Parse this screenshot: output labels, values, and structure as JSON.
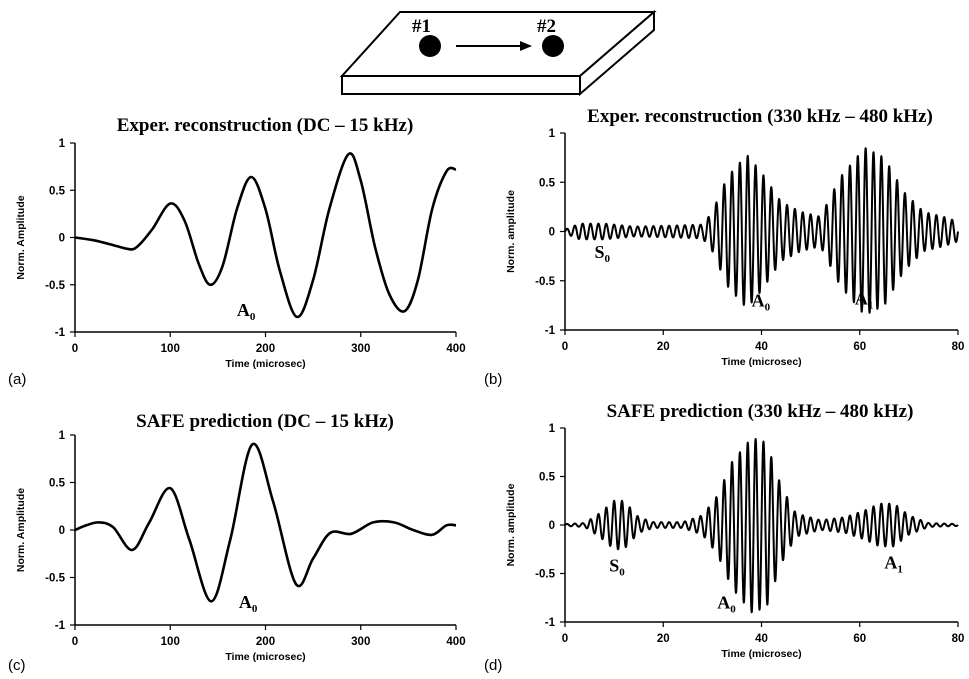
{
  "schematic": {
    "sensor_1_label": "#1",
    "sensor_2_label": "#2"
  },
  "chart_data": [
    {
      "id": "a",
      "panel_label": "(a)",
      "type": "line",
      "title": "Exper. reconstruction (DC – 15 kHz)",
      "xlabel": "Time (microsec)",
      "ylabel": "Norm. Amplitude",
      "xlim": [
        0,
        400
      ],
      "ylim": [
        -1,
        1
      ],
      "xticks": [
        0,
        100,
        200,
        300,
        400
      ],
      "yticks": [
        1,
        0.5,
        0,
        -0.5,
        -1
      ],
      "ytick_labels": [
        "1",
        "0.5",
        "0",
        "-0.5",
        "-1"
      ],
      "annotations": [
        {
          "text": "A",
          "sub": "0",
          "x": 170,
          "y": -0.83
        }
      ],
      "series": [
        {
          "x": [
            0,
            20,
            40,
            55,
            62,
            70,
            82,
            100,
            115,
            130,
            142,
            155,
            170,
            185,
            200,
            215,
            233,
            250,
            267,
            287,
            300,
            315,
            330,
            346,
            360,
            375,
            390,
            400
          ],
          "y": [
            0,
            -0.03,
            -0.08,
            -0.12,
            -0.12,
            -0.05,
            0.1,
            0.36,
            0.18,
            -0.28,
            -0.5,
            -0.3,
            0.3,
            0.64,
            0.3,
            -0.35,
            -0.84,
            -0.45,
            0.3,
            0.88,
            0.6,
            -0.1,
            -0.6,
            -0.78,
            -0.45,
            0.3,
            0.7,
            0.72
          ]
        }
      ]
    },
    {
      "id": "b",
      "panel_label": "(b)",
      "type": "line",
      "title": "Exper. reconstruction (330 kHz – 480 kHz)",
      "xlabel": "Time (microsec)",
      "ylabel": "Norm. amplitude",
      "xlim": [
        0,
        80
      ],
      "ylim": [
        -1,
        1
      ],
      "xticks": [
        0,
        20,
        40,
        60,
        80
      ],
      "yticks": [
        1,
        0.5,
        0,
        -0.5,
        -1
      ],
      "ytick_labels": [
        "1",
        "0.5",
        "0",
        "-0.5",
        "-1"
      ],
      "annotations": [
        {
          "text": "S",
          "sub": "0",
          "x": 6,
          "y": -0.27
        },
        {
          "text": "A",
          "sub": "0",
          "x": 38,
          "y": -0.76
        },
        {
          "text": "A",
          "sub": "1",
          "x": 59,
          "y": -0.74
        }
      ],
      "osc": {
        "t0": 0,
        "t1": 80,
        "period": 1.6,
        "env": [
          [
            0,
            0.02
          ],
          [
            3,
            0.08
          ],
          [
            8,
            0.08
          ],
          [
            14,
            0.05
          ],
          [
            22,
            0.06
          ],
          [
            28,
            0.07
          ],
          [
            30,
            0.2
          ],
          [
            33,
            0.55
          ],
          [
            37,
            0.78
          ],
          [
            40,
            0.6
          ],
          [
            44,
            0.3
          ],
          [
            48,
            0.2
          ],
          [
            52,
            0.15
          ],
          [
            56,
            0.55
          ],
          [
            61,
            0.85
          ],
          [
            65,
            0.75
          ],
          [
            69,
            0.4
          ],
          [
            73,
            0.2
          ],
          [
            77,
            0.15
          ],
          [
            80,
            0.1
          ]
        ]
      }
    },
    {
      "id": "c",
      "panel_label": "(c)",
      "type": "line",
      "title": "SAFE prediction (DC – 15 kHz)",
      "xlabel": "Time (microsec)",
      "ylabel": "Norm. Amplitude",
      "xlim": [
        0,
        400
      ],
      "ylim": [
        -1,
        1
      ],
      "xticks": [
        0,
        100,
        200,
        300,
        400
      ],
      "yticks": [
        1,
        0.5,
        0,
        -0.5,
        -1
      ],
      "ytick_labels": [
        "1",
        "0.5",
        "0",
        "-0.5",
        "-1"
      ],
      "annotations": [
        {
          "text": "A",
          "sub": "0",
          "x": 172,
          "y": -0.82
        }
      ],
      "series": [
        {
          "x": [
            0,
            12,
            25,
            40,
            60,
            78,
            100,
            120,
            143,
            163,
            186,
            208,
            232,
            250,
            268,
            290,
            313,
            335,
            355,
            375,
            390,
            400
          ],
          "y": [
            0,
            0.05,
            0.08,
            0.03,
            -0.21,
            0.08,
            0.44,
            -0.1,
            -0.75,
            -0.1,
            0.9,
            0.3,
            -0.57,
            -0.3,
            -0.03,
            -0.04,
            0.08,
            0.08,
            0,
            -0.05,
            0.05,
            0.05
          ]
        }
      ]
    },
    {
      "id": "d",
      "panel_label": "(d)",
      "type": "line",
      "title": "SAFE prediction (330 kHz – 480 kHz)",
      "xlabel": "Time (microsec)",
      "ylabel": "Norm. amplitude",
      "xlim": [
        0,
        80
      ],
      "ylim": [
        -1,
        1
      ],
      "xticks": [
        0,
        20,
        40,
        60,
        80
      ],
      "yticks": [
        1,
        0.5,
        0,
        -0.5,
        -1
      ],
      "ytick_labels": [
        "1",
        "0.5",
        "0",
        "-0.5",
        "-1"
      ],
      "annotations": [
        {
          "text": "S",
          "sub": "0",
          "x": 9,
          "y": -0.48
        },
        {
          "text": "A",
          "sub": "0",
          "x": 31,
          "y": -0.86
        },
        {
          "text": "A",
          "sub": "1",
          "x": 65,
          "y": -0.45
        }
      ],
      "osc": {
        "t0": 0,
        "t1": 80,
        "period": 1.6,
        "env": [
          [
            0,
            0.01
          ],
          [
            4,
            0.02
          ],
          [
            7,
            0.12
          ],
          [
            10,
            0.25
          ],
          [
            12,
            0.25
          ],
          [
            15,
            0.08
          ],
          [
            18,
            0.03
          ],
          [
            24,
            0.03
          ],
          [
            28,
            0.1
          ],
          [
            31,
            0.3
          ],
          [
            34,
            0.65
          ],
          [
            38,
            0.9
          ],
          [
            41,
            0.85
          ],
          [
            44,
            0.4
          ],
          [
            47,
            0.12
          ],
          [
            52,
            0.05
          ],
          [
            57,
            0.08
          ],
          [
            61,
            0.15
          ],
          [
            64,
            0.22
          ],
          [
            67,
            0.22
          ],
          [
            70,
            0.1
          ],
          [
            74,
            0.02
          ],
          [
            80,
            0.01
          ]
        ]
      }
    }
  ]
}
